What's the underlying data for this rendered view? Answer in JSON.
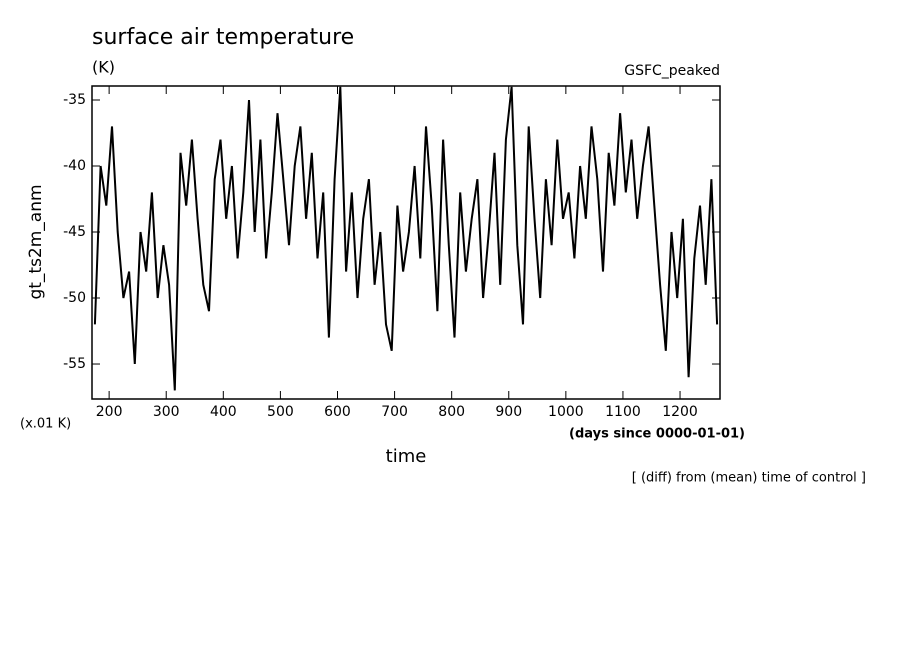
{
  "chart_data": {
    "type": "line",
    "title": "surface air temperature",
    "subtitle": "(K)",
    "source_label": "GSFC_peaked",
    "y_label": "gt_ts2m_anm",
    "y_unit_note": "(x.01 K)",
    "x_unit_note": "(days since 0000-01-01)",
    "x_label": "time",
    "footnote": "[ (diff) from (mean) time of control ]",
    "xlim": [
      170,
      1270
    ],
    "ylim": [
      -57.65,
      -33.94
    ],
    "xticks": [
      200,
      300,
      400,
      500,
      600,
      700,
      800,
      900,
      1000,
      1100,
      1200
    ],
    "yticks": [
      -35,
      -40,
      -45,
      -50,
      -55
    ],
    "series": [
      {
        "color": "#000000",
        "x": [
          175,
          185,
          195,
          205,
          215,
          225,
          235,
          245,
          255,
          265,
          275,
          285,
          295,
          305,
          315,
          325,
          335,
          345,
          355,
          365,
          375,
          385,
          395,
          405,
          415,
          425,
          435,
          445,
          455,
          465,
          475,
          485,
          495,
          505,
          515,
          525,
          535,
          545,
          555,
          565,
          575,
          585,
          595,
          605,
          615,
          625,
          635,
          645,
          655,
          665,
          675,
          685,
          695,
          705,
          715,
          725,
          735,
          745,
          755,
          765,
          775,
          785,
          795,
          805,
          815,
          825,
          835,
          845,
          855,
          865,
          875,
          885,
          895,
          905,
          915,
          925,
          935,
          945,
          955,
          965,
          975,
          985,
          995,
          1005,
          1015,
          1025,
          1035,
          1045,
          1055,
          1065,
          1075,
          1085,
          1095,
          1105,
          1115,
          1125,
          1135,
          1145,
          1155,
          1165,
          1175,
          1185,
          1195,
          1205,
          1215,
          1225,
          1235,
          1245,
          1255,
          1265
        ],
        "values": [
          -52,
          -40,
          -43,
          -37,
          -45,
          -50,
          -48,
          -55,
          -45,
          -48,
          -42,
          -50,
          -46,
          -49,
          -57,
          -39,
          -43,
          -38,
          -44,
          -49,
          -51,
          -41,
          -38,
          -44,
          -40,
          -47,
          -42,
          -35,
          -45,
          -38,
          -47,
          -42,
          -36,
          -41,
          -46,
          -40,
          -37,
          -44,
          -39,
          -47,
          -42,
          -53,
          -41,
          -34,
          -48,
          -42,
          -50,
          -44,
          -41,
          -49,
          -45,
          -52,
          -54,
          -43,
          -48,
          -45,
          -40,
          -47,
          -37,
          -43,
          -51,
          -38,
          -46,
          -53,
          -42,
          -48,
          -44,
          -41,
          -50,
          -45,
          -39,
          -49,
          -38,
          -34,
          -46,
          -52,
          -37,
          -44,
          -50,
          -41,
          -46,
          -38,
          -44,
          -42,
          -47,
          -40,
          -44,
          -37,
          -41,
          -48,
          -39,
          -43,
          -36,
          -42,
          -38,
          -44,
          -40,
          -37,
          -43,
          -49,
          -54,
          -45,
          -50,
          -44,
          -56,
          -47,
          -43,
          -49,
          -41,
          -52
        ]
      }
    ]
  }
}
